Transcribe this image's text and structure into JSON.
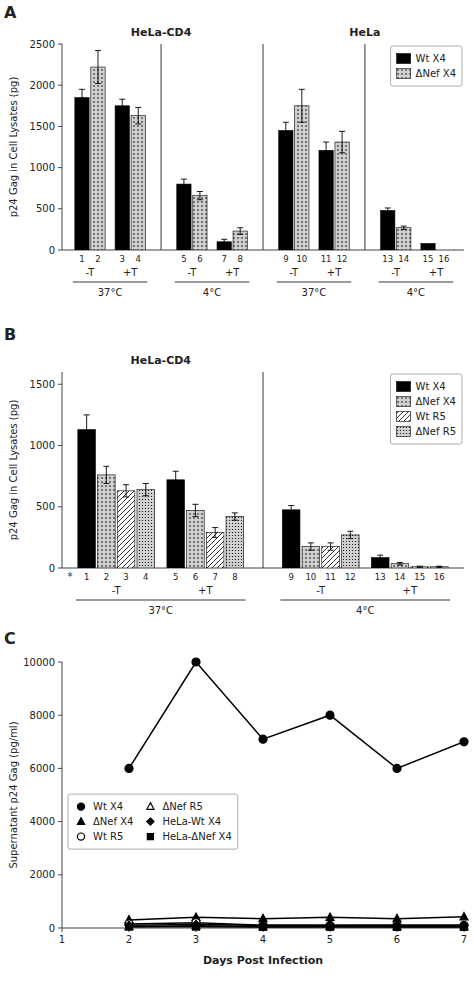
{
  "chart_data": [
    {
      "type": "bar",
      "categories": [
        "-T",
        "+T",
        "-T",
        "+T",
        "-T",
        "+T",
        "-T",
        "+T"
      ],
      "series": [
        {
          "name": "Wt X4",
          "color": "black",
          "values": [
            1850,
            1750,
            800,
            100,
            1450,
            1210,
            480,
            80
          ],
          "errors": [
            100,
            80,
            60,
            30,
            100,
            100,
            30,
            0
          ]
        },
        {
          "name": "ΔNef X4",
          "color": "#d0d0d0",
          "values": [
            2220,
            1630,
            660,
            230,
            1750,
            1310,
            270,
            0
          ],
          "errors": [
            200,
            100,
            50,
            40,
            200,
            130,
            20,
            0
          ]
        }
      ],
      "ylabel": "p24 Gag in Cell Lysates (pg)",
      "ylim": [
        0,
        2500
      ],
      "yticks": [
        0,
        500,
        1000,
        1500,
        2000,
        2500
      ],
      "grid": false,
      "legend": "upper right",
      "annotations": {
        "panel": "A",
        "headers": [
          "HeLa-CD4",
          "HeLa"
        ],
        "conditions": [
          "37°C",
          "4°C",
          "37°C",
          "4°C"
        ],
        "bar_numbers": [
          "1",
          "2",
          "3",
          "4",
          "5",
          "6",
          "7",
          "8",
          "9",
          "10",
          "11",
          "12",
          "13",
          "14",
          "15",
          "16"
        ]
      }
    },
    {
      "type": "bar",
      "title": "HeLa-CD4",
      "categories": [
        "-T",
        "+T",
        "-T",
        "+T"
      ],
      "series": [
        {
          "name": "Wt X4",
          "color": "black",
          "values": [
            1130,
            720,
            475,
            85
          ],
          "errors": [
            120,
            70,
            35,
            20
          ]
        },
        {
          "name": "ΔNef X4",
          "color": "#d0d0d0",
          "values": [
            760,
            470,
            175,
            35
          ],
          "errors": [
            70,
            50,
            30,
            10
          ]
        },
        {
          "name": "Wt R5",
          "color": "white",
          "values": [
            630,
            290,
            175,
            10
          ],
          "errors": [
            50,
            40,
            30,
            5
          ]
        },
        {
          "name": "ΔNef R5",
          "color": "#d0d0d0",
          "values": [
            640,
            420,
            270,
            10
          ],
          "errors": [
            50,
            30,
            30,
            5
          ]
        }
      ],
      "ylabel": "p24 Gag in Cell Lysates (pg)",
      "ylim": [
        0,
        1600
      ],
      "yticks": [
        0,
        500,
        1000,
        1500
      ],
      "grid": false,
      "legend": "upper right",
      "annotations": {
        "panel": "B",
        "note": "*",
        "conditions": [
          "37°C",
          "4°C"
        ],
        "bar_numbers": [
          "1",
          "2",
          "3",
          "4",
          "5",
          "6",
          "7",
          "8",
          "9",
          "10",
          "11",
          "12",
          "13",
          "14",
          "15",
          "16"
        ]
      }
    },
    {
      "type": "line",
      "x": [
        2,
        3,
        4,
        5,
        6,
        7
      ],
      "xlim": [
        1,
        7
      ],
      "xticks": [
        1,
        2,
        3,
        4,
        5,
        6,
        7
      ],
      "ylim": [
        0,
        10000
      ],
      "yticks": [
        0,
        2000,
        4000,
        6000,
        8000,
        10000
      ],
      "xlabel": "Days Post Infection",
      "ylabel": "Supernatant p24 Gag (pg/ml)",
      "grid": false,
      "legend": "left",
      "series": [
        {
          "name": "Wt X4",
          "color": "black",
          "marker": "circle",
          "values": [
            6000,
            10000,
            7100,
            8000,
            6000,
            7000
          ]
        },
        {
          "name": "ΔNef X4",
          "color": "black",
          "marker": "triangle",
          "values": [
            300,
            400,
            350,
            400,
            350,
            420
          ]
        },
        {
          "name": "Wt R5",
          "color": "black",
          "marker": "circle-open",
          "values": [
            150,
            200,
            100,
            100,
            100,
            100
          ]
        },
        {
          "name": "ΔNef R5",
          "color": "black",
          "marker": "triangle-open",
          "values": [
            50,
            80,
            50,
            60,
            50,
            50
          ]
        },
        {
          "name": "HeLa-Wt X4",
          "color": "black",
          "marker": "diamond",
          "values": [
            100,
            130,
            100,
            100,
            100,
            100
          ]
        },
        {
          "name": "HeLa-ΔNef X4",
          "color": "black",
          "marker": "square",
          "values": [
            50,
            50,
            40,
            40,
            40,
            40
          ]
        }
      ],
      "annotations": {
        "panel": "C"
      }
    }
  ]
}
